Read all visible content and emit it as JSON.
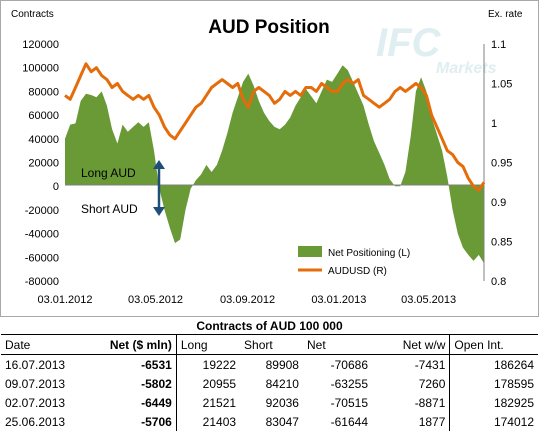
{
  "chart_data": {
    "type": "area+line",
    "title": "AUD Position",
    "left_axis_title": "Contracts",
    "right_axis_title": "Ex. rate",
    "y_left_ticks": [
      "120000",
      "100000",
      "80000",
      "60000",
      "40000",
      "20000",
      "0",
      "-20000",
      "-40000",
      "-60000",
      "-80000"
    ],
    "y_left_range": [
      -80000,
      120000
    ],
    "y_right_ticks": [
      "1.1",
      "1.05",
      "1",
      "0.95",
      "0.9",
      "0.85",
      "0.8"
    ],
    "y_right_range": [
      0.8,
      1.1
    ],
    "x_ticks": [
      "03.01.2012",
      "03.05.2012",
      "03.09.2012",
      "03.01.2013",
      "03.05.2013"
    ],
    "x_range": [
      "2012-01-03",
      "2013-07-16"
    ],
    "legend_position": "bottom-right",
    "annotations": {
      "long": "Long AUD",
      "short": "Short AUD"
    },
    "series": [
      {
        "name": "Net Positioning (L)",
        "kind": "area",
        "color": "#6a9a36",
        "x": [
          "2012-01-03",
          "2012-01-10",
          "2012-01-17",
          "2012-01-24",
          "2012-01-31",
          "2012-02-07",
          "2012-02-14",
          "2012-02-21",
          "2012-02-28",
          "2012-03-06",
          "2012-03-13",
          "2012-03-20",
          "2012-03-27",
          "2012-04-03",
          "2012-04-10",
          "2012-04-17",
          "2012-04-24",
          "2012-05-01",
          "2012-05-08",
          "2012-05-15",
          "2012-05-22",
          "2012-05-29",
          "2012-06-05",
          "2012-06-12",
          "2012-06-19",
          "2012-06-26",
          "2012-07-03",
          "2012-07-10",
          "2012-07-17",
          "2012-07-24",
          "2012-07-31",
          "2012-08-07",
          "2012-08-14",
          "2012-08-21",
          "2012-08-28",
          "2012-09-04",
          "2012-09-11",
          "2012-09-18",
          "2012-09-25",
          "2012-10-02",
          "2012-10-09",
          "2012-10-16",
          "2012-10-23",
          "2012-10-30",
          "2012-11-06",
          "2012-11-13",
          "2012-11-20",
          "2012-11-27",
          "2012-12-04",
          "2012-12-11",
          "2012-12-18",
          "2012-12-25",
          "2013-01-01",
          "2013-01-08",
          "2013-01-15",
          "2013-01-22",
          "2013-01-29",
          "2013-02-05",
          "2013-02-12",
          "2013-02-19",
          "2013-02-26",
          "2013-03-05",
          "2013-03-12",
          "2013-03-19",
          "2013-03-26",
          "2013-04-02",
          "2013-04-09",
          "2013-04-16",
          "2013-04-23",
          "2013-04-30",
          "2013-05-07",
          "2013-05-14",
          "2013-05-21",
          "2013-05-28",
          "2013-06-04",
          "2013-06-11",
          "2013-06-18",
          "2013-06-25",
          "2013-07-02",
          "2013-07-09",
          "2013-07-16"
        ],
        "values": [
          40000,
          52000,
          53000,
          72000,
          78000,
          77000,
          75000,
          80000,
          68000,
          48000,
          36000,
          52000,
          46000,
          50000,
          54000,
          50000,
          54000,
          30000,
          -2000,
          -20000,
          -35000,
          -48000,
          -45000,
          -20000,
          -2000,
          5000,
          10000,
          18000,
          12000,
          18000,
          30000,
          45000,
          62000,
          75000,
          88000,
          95000,
          85000,
          72000,
          62000,
          55000,
          50000,
          48000,
          52000,
          58000,
          68000,
          75000,
          82000,
          76000,
          70000,
          80000,
          90000,
          88000,
          95000,
          102000,
          98000,
          88000,
          78000,
          68000,
          52000,
          38000,
          28000,
          18000,
          6000,
          0,
          0,
          12000,
          42000,
          80000,
          92000,
          80000,
          58000,
          44000,
          30000,
          8000,
          -20000,
          -40000,
          -52000,
          -58000,
          -63000,
          -58000,
          -65000
        ]
      },
      {
        "name": "AUDUSD (R)",
        "kind": "line",
        "color": "#e46c0a",
        "x": [
          "2012-01-03",
          "2012-01-10",
          "2012-01-17",
          "2012-01-24",
          "2012-01-31",
          "2012-02-07",
          "2012-02-14",
          "2012-02-21",
          "2012-02-28",
          "2012-03-06",
          "2012-03-13",
          "2012-03-20",
          "2012-03-27",
          "2012-04-03",
          "2012-04-10",
          "2012-04-17",
          "2012-04-24",
          "2012-05-01",
          "2012-05-08",
          "2012-05-15",
          "2012-05-22",
          "2012-05-29",
          "2012-06-05",
          "2012-06-12",
          "2012-06-19",
          "2012-06-26",
          "2012-07-03",
          "2012-07-10",
          "2012-07-17",
          "2012-07-24",
          "2012-07-31",
          "2012-08-07",
          "2012-08-14",
          "2012-08-21",
          "2012-08-28",
          "2012-09-04",
          "2012-09-11",
          "2012-09-18",
          "2012-09-25",
          "2012-10-02",
          "2012-10-09",
          "2012-10-16",
          "2012-10-23",
          "2012-10-30",
          "2012-11-06",
          "2012-11-13",
          "2012-11-20",
          "2012-11-27",
          "2012-12-04",
          "2012-12-11",
          "2012-12-18",
          "2012-12-25",
          "2013-01-01",
          "2013-01-08",
          "2013-01-15",
          "2013-01-22",
          "2013-01-29",
          "2013-02-05",
          "2013-02-12",
          "2013-02-19",
          "2013-02-26",
          "2013-03-05",
          "2013-03-12",
          "2013-03-19",
          "2013-03-26",
          "2013-04-02",
          "2013-04-09",
          "2013-04-16",
          "2013-04-23",
          "2013-04-30",
          "2013-05-07",
          "2013-05-14",
          "2013-05-21",
          "2013-05-28",
          "2013-06-04",
          "2013-06-11",
          "2013-06-18",
          "2013-06-25",
          "2013-07-02",
          "2013-07-09",
          "2013-07-16"
        ],
        "values": [
          1.035,
          1.03,
          1.045,
          1.06,
          1.075,
          1.065,
          1.07,
          1.06,
          1.055,
          1.045,
          1.05,
          1.04,
          1.035,
          1.03,
          1.035,
          1.03,
          1.035,
          1.02,
          1.01,
          0.995,
          0.985,
          0.98,
          0.99,
          1.0,
          1.01,
          1.02,
          1.025,
          1.035,
          1.045,
          1.05,
          1.055,
          1.05,
          1.045,
          1.05,
          1.03,
          1.02,
          1.04,
          1.045,
          1.04,
          1.035,
          1.025,
          1.03,
          1.04,
          1.035,
          1.04,
          1.035,
          1.045,
          1.045,
          1.04,
          1.05,
          1.045,
          1.04,
          1.04,
          1.05,
          1.055,
          1.05,
          1.055,
          1.035,
          1.03,
          1.025,
          1.02,
          1.025,
          1.03,
          1.04,
          1.045,
          1.04,
          1.045,
          1.05,
          1.045,
          1.035,
          1.01,
          0.995,
          0.98,
          0.965,
          0.96,
          0.95,
          0.945,
          0.93,
          0.92,
          0.915,
          0.925
        ]
      }
    ]
  },
  "watermark": {
    "brand": "IFC",
    "sub": "Markets"
  },
  "table": {
    "title": "Contracts of AUD 100 000",
    "headers": [
      "Date",
      "Net ($ mln)",
      "Long",
      "Short",
      "Net",
      "Net w/w",
      "Open Int."
    ],
    "rows": [
      [
        "16.07.2013",
        "-6531",
        "19222",
        "89908",
        "-70686",
        "-7431",
        "186264"
      ],
      [
        "09.07.2013",
        "-5802",
        "20955",
        "84210",
        "-63255",
        "7260",
        "178595"
      ],
      [
        "02.07.2013",
        "-6449",
        "21521",
        "92036",
        "-70515",
        "-8871",
        "182925"
      ],
      [
        "25.06.2013",
        "-5706",
        "21403",
        "83047",
        "-61644",
        "1877",
        "174012"
      ]
    ]
  }
}
